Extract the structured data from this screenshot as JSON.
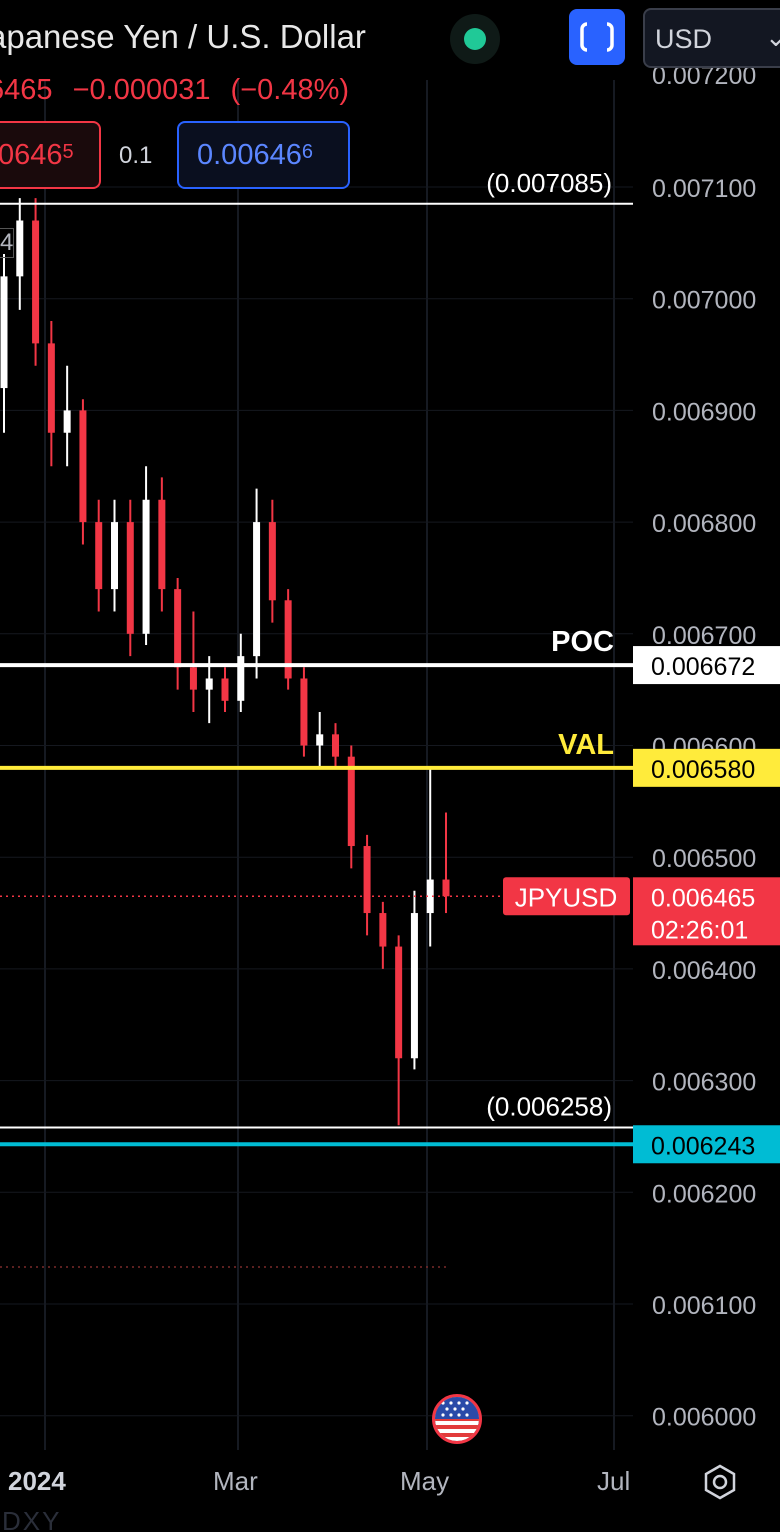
{
  "header": {
    "title": "apanese Yen / U.S. Dollar",
    "currency": "USD",
    "change_price": "6465",
    "change_abs": "−0.000031",
    "change_pct": "(−0.48%)",
    "sell_main": "0646",
    "sell_small": "5",
    "spread": "0.1",
    "buy_main": "0.00646",
    "buy_small": "6",
    "left_glyph": "4"
  },
  "time_axis": {
    "year": "2024",
    "mar": "Mar",
    "may": "May",
    "jul": "Jul"
  },
  "bottom_symbol": "DXY",
  "colors": {
    "background": "#000000",
    "down": "#f23645",
    "up": "#ffffff",
    "accent_blue": "#2962ff",
    "poc_line": "#ffffff",
    "val_line": "#ffeb3b",
    "cyan_line": "#00bcd4",
    "status_green": "#20c997"
  },
  "chart_data": {
    "type": "candlestick",
    "symbol": "JPYUSD",
    "y_axis_ticks": [
      "0.007100",
      "0.007000",
      "0.006900",
      "0.006800",
      "0.006700",
      "0.006600",
      "0.006500",
      "0.006400",
      "0.006300",
      "0.006200",
      "0.006100",
      "0.006000"
    ],
    "y_axis_partial_top": "0.007200",
    "ylim": [
      0.00598,
      0.00722
    ],
    "x_tick_labels": [
      "2024",
      "Mar",
      "May",
      "Jul"
    ],
    "horizontal_lines": [
      {
        "label": "POC",
        "value": 0.006672,
        "price_tag": "0.006672",
        "color": "#ffffff"
      },
      {
        "label": "VAL",
        "value": 0.00658,
        "price_tag": "0.006580",
        "color": "#ffeb3b"
      },
      {
        "label": "",
        "value": 0.006243,
        "price_tag": "0.006243",
        "color": "#00bcd4"
      }
    ],
    "high_marker": {
      "value": 0.007085,
      "text": "(0.007085)"
    },
    "low_marker": {
      "value": 0.006258,
      "text": "(0.006258)"
    },
    "current_price": {
      "label": "JPYUSD",
      "value": 0.006465,
      "price_tag": "0.006465",
      "countdown": "02:26:01"
    },
    "candles": [
      [
        0.00692,
        0.00704,
        0.00688,
        0.00702
      ],
      [
        0.00702,
        0.00709,
        0.00699,
        0.00707
      ],
      [
        0.00707,
        0.00709,
        0.00694,
        0.00696
      ],
      [
        0.00696,
        0.00698,
        0.00685,
        0.00688
      ],
      [
        0.00688,
        0.00694,
        0.00685,
        0.0069
      ],
      [
        0.0069,
        0.00691,
        0.00678,
        0.0068
      ],
      [
        0.0068,
        0.00682,
        0.00672,
        0.00674
      ],
      [
        0.00674,
        0.00682,
        0.00672,
        0.0068
      ],
      [
        0.0068,
        0.00682,
        0.00668,
        0.0067
      ],
      [
        0.0067,
        0.00685,
        0.00669,
        0.00682
      ],
      [
        0.00682,
        0.00684,
        0.00672,
        0.00674
      ],
      [
        0.00674,
        0.00675,
        0.00665,
        0.00667
      ],
      [
        0.00667,
        0.00672,
        0.00663,
        0.00665
      ],
      [
        0.00665,
        0.00668,
        0.00662,
        0.00666
      ],
      [
        0.00666,
        0.00667,
        0.00663,
        0.00664
      ],
      [
        0.00664,
        0.0067,
        0.00663,
        0.00668
      ],
      [
        0.00668,
        0.00683,
        0.00666,
        0.0068
      ],
      [
        0.0068,
        0.00682,
        0.00671,
        0.00673
      ],
      [
        0.00673,
        0.00674,
        0.00665,
        0.00666
      ],
      [
        0.00666,
        0.00667,
        0.00659,
        0.0066
      ],
      [
        0.0066,
        0.00663,
        0.00658,
        0.00661
      ],
      [
        0.00661,
        0.00662,
        0.00658,
        0.00659
      ],
      [
        0.00659,
        0.0066,
        0.00649,
        0.00651
      ],
      [
        0.00651,
        0.00652,
        0.00643,
        0.00645
      ],
      [
        0.00645,
        0.00646,
        0.0064,
        0.00642
      ],
      [
        0.00642,
        0.00643,
        0.00626,
        0.00632
      ],
      [
        0.00632,
        0.00647,
        0.00631,
        0.00645
      ],
      [
        0.00645,
        0.00658,
        0.00642,
        0.00648
      ],
      [
        0.00648,
        0.00654,
        0.00645,
        0.006465
      ]
    ]
  }
}
